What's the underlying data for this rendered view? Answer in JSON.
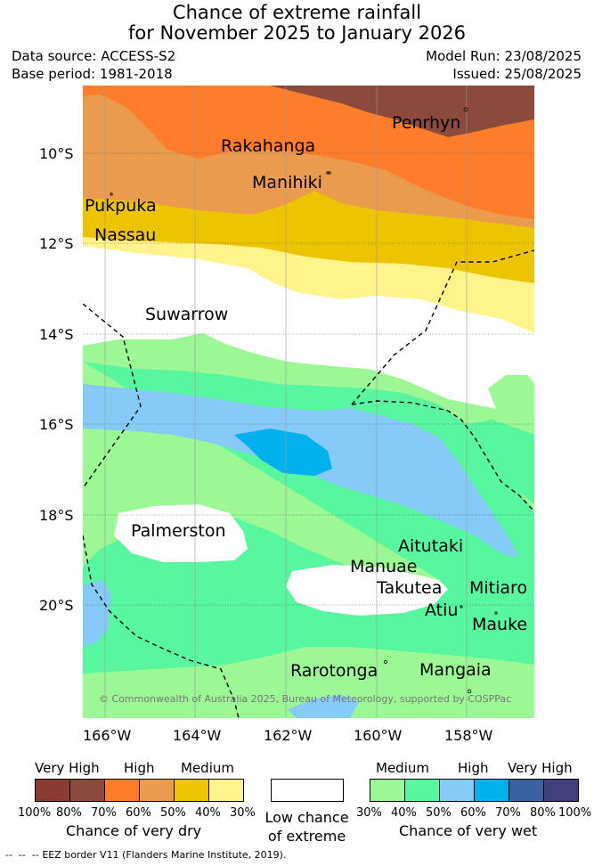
{
  "header": {
    "title_line1": "Chance of extreme rainfall",
    "title_line2": "for November 2025 to January 2026",
    "data_source": "Data source: ACCESS-S2",
    "base_period": "Base period: 1981-2018",
    "model_run": "Model Run: 23/08/2025",
    "issued": "Issued: 25/08/2025"
  },
  "map": {
    "lat_labels": [
      "10°S",
      "12°S",
      "14°S",
      "16°S",
      "18°S",
      "20°S"
    ],
    "lon_labels": [
      "166°W",
      "164°W",
      "162°W",
      "160°W",
      "158°W"
    ],
    "islands": {
      "penrhyn": "Penrhyn",
      "rakahanga": "Rakahanga",
      "manihiki": "Manihiki",
      "pukpuka": "Pukpuka",
      "nassau": "Nassau",
      "suwarrow": "Suwarrow",
      "palmerston": "Palmerston",
      "aitutaki": "Aitutaki",
      "manuae": "Manuae",
      "takutea": "Takutea",
      "mitiaro": "Mitiaro",
      "atiu": "Atiu",
      "mauke": "Mauke",
      "rarotonga": "Rarotonga",
      "mangaia": "Mangaia"
    },
    "copyright": "© Commonwealth of Australia 2025, Bureau of Meteorology, supported by COSPPac"
  },
  "legend": {
    "dry": {
      "levels": [
        "Very High",
        "High",
        "Medium"
      ],
      "colors": [
        "#8c3b31",
        "#8b4a3c",
        "#fd7d2a",
        "#eb9b4e",
        "#edc400",
        "#fff48c"
      ],
      "ticks": [
        "100%",
        "80%",
        "70%",
        "60%",
        "50%",
        "40%",
        "30%"
      ],
      "caption": "Chance of very dry"
    },
    "low": {
      "color": "#ffffff",
      "caption_line1": "Low chance",
      "caption_line2": "of extreme"
    },
    "wet": {
      "levels": [
        "Medium",
        "High",
        "Very High"
      ],
      "colors": [
        "#9bf894",
        "#58f69f",
        "#86caf8",
        "#00b1ee",
        "#3a61a0",
        "#413e7c"
      ],
      "ticks": [
        "30%",
        "40%",
        "50%",
        "60%",
        "70%",
        "80%",
        "100%"
      ],
      "caption": "Chance of very wet"
    }
  },
  "footer": {
    "eez_note": "EEZ border V11 (Flanders Marine Institute, 2019)."
  }
}
